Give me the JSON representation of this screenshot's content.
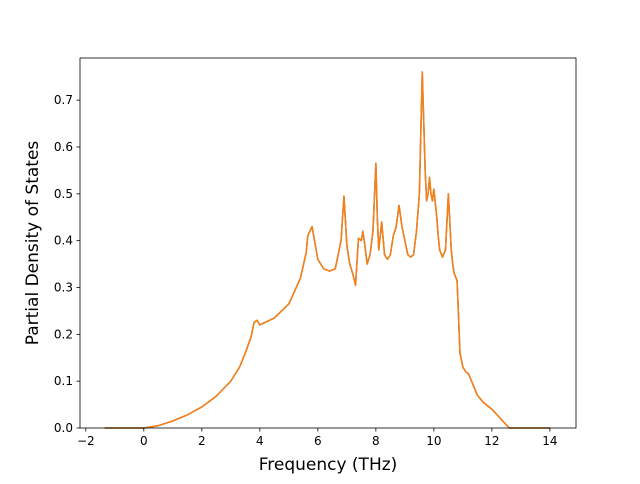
{
  "chart_data": {
    "type": "line",
    "title": "",
    "xlabel": "Frequency (THz)",
    "ylabel": "Partial Density of States",
    "xlim": [
      -2.2,
      14.9
    ],
    "ylim": [
      0.0,
      0.79
    ],
    "xticks": [
      -2,
      0,
      2,
      4,
      6,
      8,
      10,
      12,
      14
    ],
    "yticks": [
      0.0,
      0.1,
      0.2,
      0.3,
      0.4,
      0.5,
      0.6,
      0.7
    ],
    "ytick_labels": [
      "0.0",
      "0.1",
      "0.2",
      "0.3",
      "0.4",
      "0.5",
      "0.6",
      "0.7"
    ],
    "xtick_labels": [
      "−2",
      "0",
      "2",
      "4",
      "6",
      "8",
      "10",
      "12",
      "14"
    ],
    "grid": false,
    "colors": {
      "series_back": "#1f77b4",
      "series_front": "#ff7f0e",
      "axes": "#000000"
    },
    "series": [
      {
        "x": [
          -1.35,
          0.0,
          0.5,
          1.0,
          1.5,
          2.0,
          2.5,
          3.0,
          3.3,
          3.5,
          3.7,
          3.8,
          3.9,
          4.0,
          4.5,
          5.0,
          5.4,
          5.6,
          5.65,
          5.8,
          6.0,
          6.2,
          6.4,
          6.6,
          6.8,
          6.9,
          7.0,
          7.1,
          7.2,
          7.3,
          7.4,
          7.5,
          7.55,
          7.6,
          7.7,
          7.8,
          7.9,
          8.0,
          8.05,
          8.1,
          8.2,
          8.3,
          8.4,
          8.5,
          8.6,
          8.7,
          8.8,
          8.9,
          9.0,
          9.1,
          9.2,
          9.3,
          9.4,
          9.5,
          9.6,
          9.7,
          9.75,
          9.8,
          9.85,
          9.9,
          9.95,
          10.0,
          10.05,
          10.1,
          10.15,
          10.2,
          10.3,
          10.4,
          10.5,
          10.6,
          10.65,
          10.7,
          10.8,
          10.9,
          11.0,
          11.1,
          11.2,
          11.3,
          11.4,
          11.5,
          11.7,
          12.0,
          12.3,
          12.6,
          12.8,
          12.85,
          13.0,
          14.0
        ],
        "y": [
          0.0,
          0.0,
          0.005,
          0.015,
          0.028,
          0.045,
          0.068,
          0.1,
          0.13,
          0.16,
          0.195,
          0.225,
          0.23,
          0.22,
          0.235,
          0.265,
          0.32,
          0.375,
          0.41,
          0.43,
          0.36,
          0.34,
          0.335,
          0.34,
          0.4,
          0.495,
          0.39,
          0.35,
          0.33,
          0.305,
          0.405,
          0.4,
          0.42,
          0.4,
          0.35,
          0.37,
          0.42,
          0.565,
          0.45,
          0.38,
          0.44,
          0.37,
          0.36,
          0.37,
          0.41,
          0.43,
          0.475,
          0.43,
          0.4,
          0.37,
          0.365,
          0.37,
          0.42,
          0.5,
          0.76,
          0.55,
          0.485,
          0.5,
          0.535,
          0.5,
          0.485,
          0.51,
          0.48,
          0.45,
          0.41,
          0.38,
          0.365,
          0.38,
          0.5,
          0.38,
          0.35,
          0.33,
          0.315,
          0.16,
          0.13,
          0.12,
          0.115,
          0.1,
          0.085,
          0.07,
          0.055,
          0.04,
          0.02,
          0.0,
          0.0,
          0.0,
          0.0,
          0.0
        ]
      }
    ]
  }
}
